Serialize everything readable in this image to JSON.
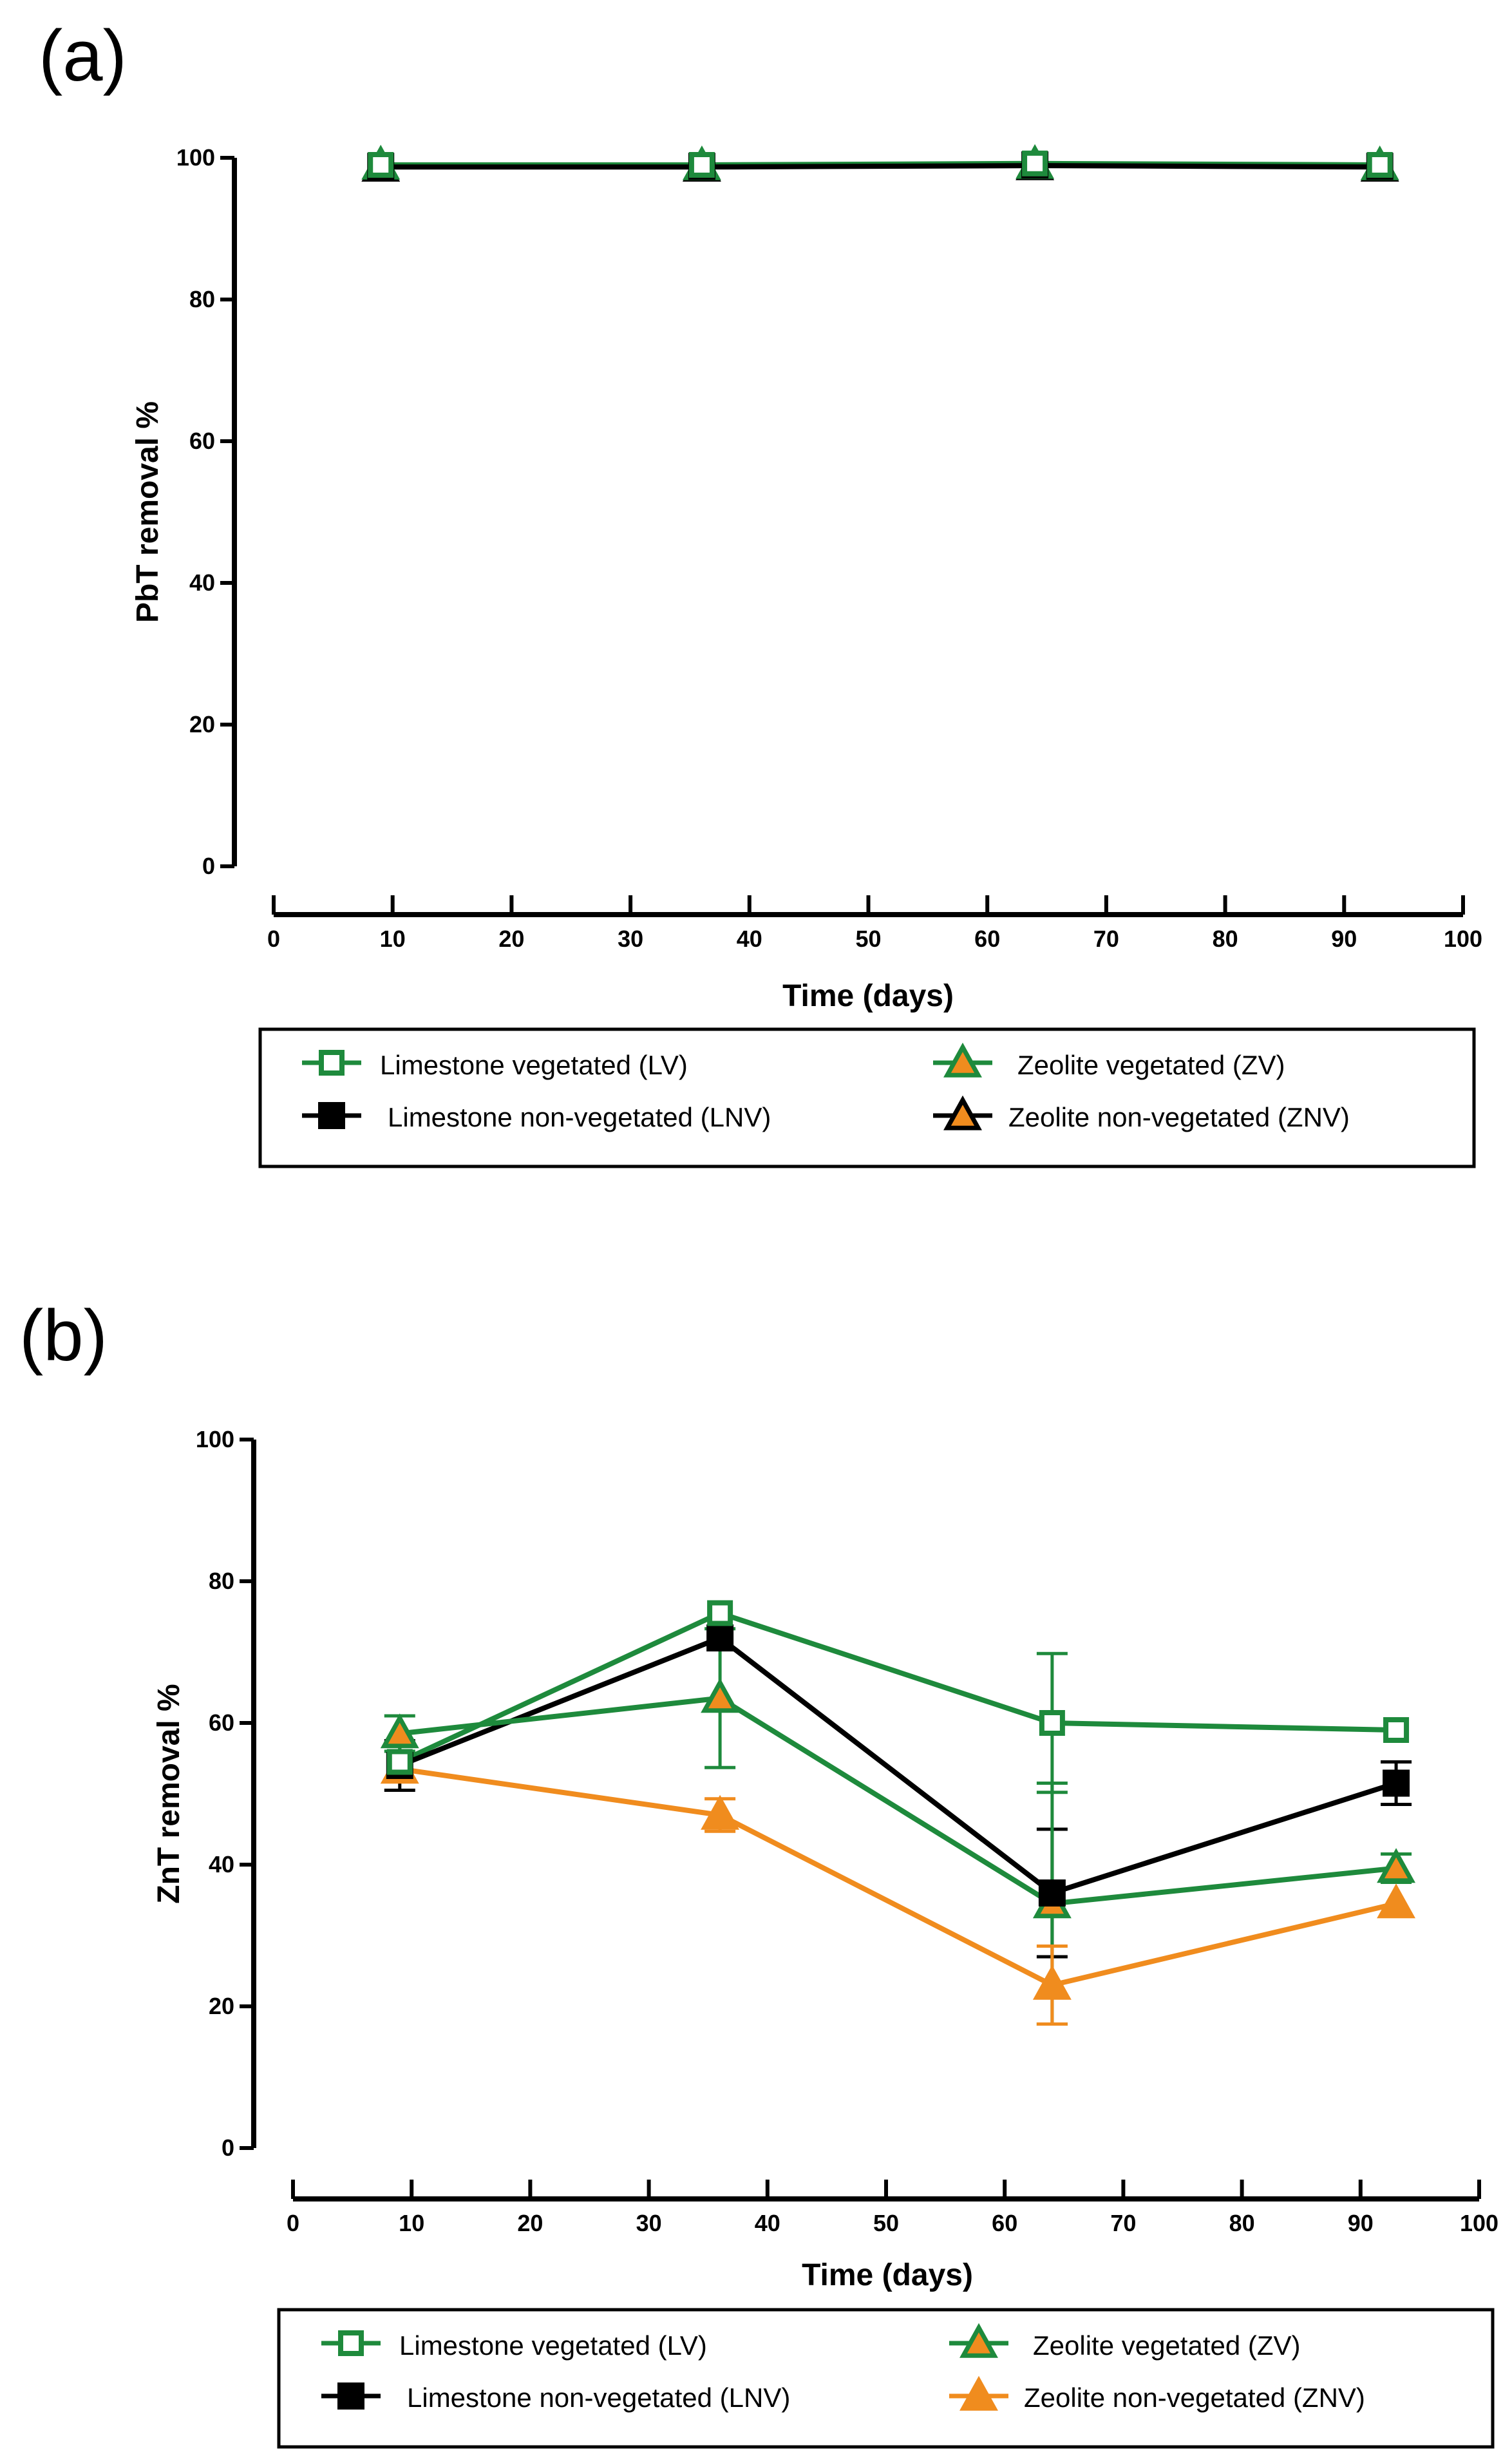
{
  "chart_data": [
    {
      "type": "line",
      "panel_label": "(a)",
      "xlabel": "Time (days)",
      "ylabel": "PbT removal %",
      "xlim": [
        0,
        100
      ],
      "ylim": [
        0,
        100
      ],
      "xticks": [
        0,
        10,
        20,
        30,
        40,
        50,
        60,
        70,
        80,
        90,
        100
      ],
      "yticks": [
        0,
        20,
        40,
        60,
        80,
        100
      ],
      "grid": false,
      "legend_position": "bottom",
      "series": [
        {
          "name": "Limestone vegetated (LV)",
          "marker": "open-square",
          "color": "#1e8a3c",
          "x": [
            9,
            36,
            64,
            93
          ],
          "y": [
            99,
            99,
            99.2,
            99
          ],
          "err": [
            0,
            0,
            0,
            0
          ]
        },
        {
          "name": "Limestone non-vegetated (LNV)",
          "marker": "filled-square",
          "color": "#000000",
          "x": [
            9,
            36,
            64,
            93
          ],
          "y": [
            98.8,
            98.8,
            99,
            98.8
          ],
          "err": [
            0,
            0,
            0,
            0
          ]
        },
        {
          "name": "Zeolite vegetated (ZV)",
          "marker": "triangle",
          "color": "#1e8a3c",
          "fill": "#f08c1e",
          "x": [
            9,
            36,
            64,
            93
          ],
          "y": [
            99,
            98.9,
            99.1,
            98.9
          ],
          "err": [
            0,
            0,
            0,
            0
          ]
        },
        {
          "name": "Zeolite non-vegetated (ZNV)",
          "marker": "triangle",
          "color": "#000000",
          "fill": "#f08c1e",
          "x": [
            9,
            36,
            64,
            93
          ],
          "y": [
            98.7,
            98.7,
            98.9,
            98.7
          ],
          "err": [
            0,
            0,
            0,
            0
          ]
        }
      ]
    },
    {
      "type": "line",
      "panel_label": "(b)",
      "xlabel": "Time (days)",
      "ylabel": "ZnT removal %",
      "xlim": [
        0,
        100
      ],
      "ylim": [
        0,
        100
      ],
      "xticks": [
        0,
        10,
        20,
        30,
        40,
        50,
        60,
        70,
        80,
        90,
        100
      ],
      "yticks": [
        0,
        20,
        40,
        60,
        80,
        100
      ],
      "grid": false,
      "legend_position": "bottom",
      "series": [
        {
          "name": "Limestone vegetated (LV)",
          "marker": "open-square",
          "color": "#1e8a3c",
          "x": [
            9,
            36,
            64,
            93
          ],
          "y": [
            54.5,
            75.5,
            60,
            59
          ],
          "err": [
            0,
            0,
            9.8,
            0
          ]
        },
        {
          "name": "Limestone non-vegetated (LNV)",
          "marker": "filled-square",
          "color": "#000000",
          "x": [
            9,
            36,
            64,
            93
          ],
          "y": [
            54,
            72,
            36,
            51.5
          ],
          "err": [
            3.5,
            0,
            9,
            3
          ]
        },
        {
          "name": "Zeolite vegetated (ZV)",
          "marker": "triangle",
          "color": "#1e8a3c",
          "fill": "#f08c1e",
          "x": [
            9,
            36,
            64,
            93
          ],
          "y": [
            58.5,
            63.5,
            34.5,
            39.5
          ],
          "err": [
            2.5,
            9.8,
            17,
            2
          ]
        },
        {
          "name": "Zeolite non-vegetated (ZNV)",
          "marker": "triangle",
          "color": "#f08c1e",
          "fill": "#f08c1e",
          "x": [
            9,
            36,
            64,
            93
          ],
          "y": [
            53.5,
            47,
            23,
            34.5
          ],
          "err": [
            0,
            2.3,
            5.5,
            0
          ]
        }
      ]
    }
  ]
}
